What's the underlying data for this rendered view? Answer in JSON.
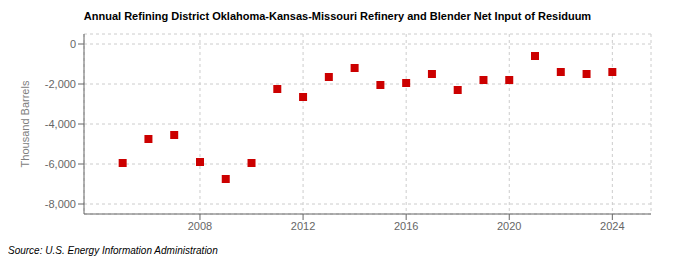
{
  "chart_data": {
    "type": "scatter",
    "title": "Annual Refining District Oklahoma-Kansas-Missouri Refinery and Blender Net Input of Residuum",
    "ylabel": "Thousand Barrels",
    "annotations": [
      "Source: U.S. Energy Information Administration"
    ],
    "x": [
      2005,
      2006,
      2007,
      2008,
      2009,
      2010,
      2011,
      2012,
      2013,
      2014,
      2015,
      2016,
      2017,
      2018,
      2019,
      2020,
      2021,
      2022,
      2023,
      2024
    ],
    "values": [
      -5950,
      -4750,
      -4550,
      -5900,
      -6750,
      -5950,
      -2250,
      -2650,
      -1650,
      -1200,
      -2050,
      -1950,
      -1500,
      -2300,
      -1800,
      -1800,
      -600,
      -1400,
      -1500,
      -1400
    ],
    "color": "#cc0000",
    "marker": "square",
    "xlim": [
      2003.5,
      2025.5
    ],
    "xticks": [
      2008,
      2012,
      2016,
      2020,
      2024
    ],
    "ylim": [
      -8500,
      500
    ],
    "yticks": [
      0,
      {
        "value": -2000,
        "label": "-2,000"
      },
      {
        "value": -4000,
        "label": "-4,000"
      },
      {
        "value": -6000,
        "label": "-6,000"
      },
      {
        "value": -8000,
        "label": "-8,000"
      }
    ],
    "grid": true
  }
}
